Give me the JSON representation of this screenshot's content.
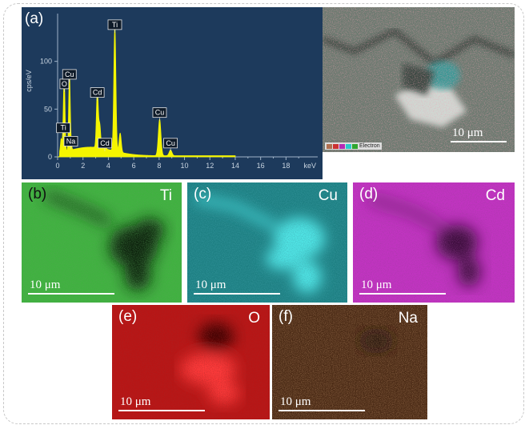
{
  "spectrum": {
    "label": "(a)",
    "ylabel": "cps/eV",
    "xunit": "keV",
    "y_ticks": [
      "0",
      "50",
      "100"
    ],
    "x_ticks": [
      "0",
      "2",
      "4",
      "6",
      "8",
      "10",
      "12",
      "14",
      "16",
      "18"
    ],
    "peak_labels": [
      "Ti",
      "O",
      "Cu",
      "Na",
      "Cd",
      "Cd",
      "Ti",
      "Cu",
      "Cu"
    ]
  },
  "chart_data": {
    "type": "line",
    "xlabel": "keV",
    "ylabel": "cps/eV",
    "xlim": [
      0,
      20.5
    ],
    "ylim": [
      0,
      150
    ],
    "peaks": [
      {
        "x": 0.28,
        "y": 14
      },
      {
        "x": 0.45,
        "y": 22,
        "label": "Ti"
      },
      {
        "x": 0.53,
        "y": 68,
        "label": "O"
      },
      {
        "x": 0.93,
        "y": 78,
        "label": "Cu"
      },
      {
        "x": 1.04,
        "y": 8,
        "label": "Na"
      },
      {
        "x": 3.13,
        "y": 59,
        "label": "Cd"
      },
      {
        "x": 3.32,
        "y": 24
      },
      {
        "x": 3.72,
        "y": 6,
        "label": "Cd"
      },
      {
        "x": 4.51,
        "y": 130,
        "label": "Ti"
      },
      {
        "x": 4.93,
        "y": 20
      },
      {
        "x": 8.04,
        "y": 38,
        "label": "Cu"
      },
      {
        "x": 8.9,
        "y": 6,
        "label": "Cu"
      }
    ],
    "line_color": "#f5f500",
    "background": "#1d3a5c"
  },
  "sem": {
    "scale_text": "10 μm",
    "legend_text": "Electron"
  },
  "maps": [
    {
      "label": "(b)",
      "element": "Ti",
      "scale_text": "10 μm",
      "color": "#2fa62f"
    },
    {
      "label": "(c)",
      "element": "Cu",
      "scale_text": "10 μm",
      "color": "#2bc9c9"
    },
    {
      "label": "(d)",
      "element": "Cd",
      "scale_text": "10 μm",
      "color": "#b52ab5"
    },
    {
      "label": "(e)",
      "element": "O",
      "scale_text": "10 μm",
      "color": "#c21a1a"
    },
    {
      "label": "(f)",
      "element": "Na",
      "scale_text": "10 μm",
      "color": "#8a5430"
    }
  ]
}
